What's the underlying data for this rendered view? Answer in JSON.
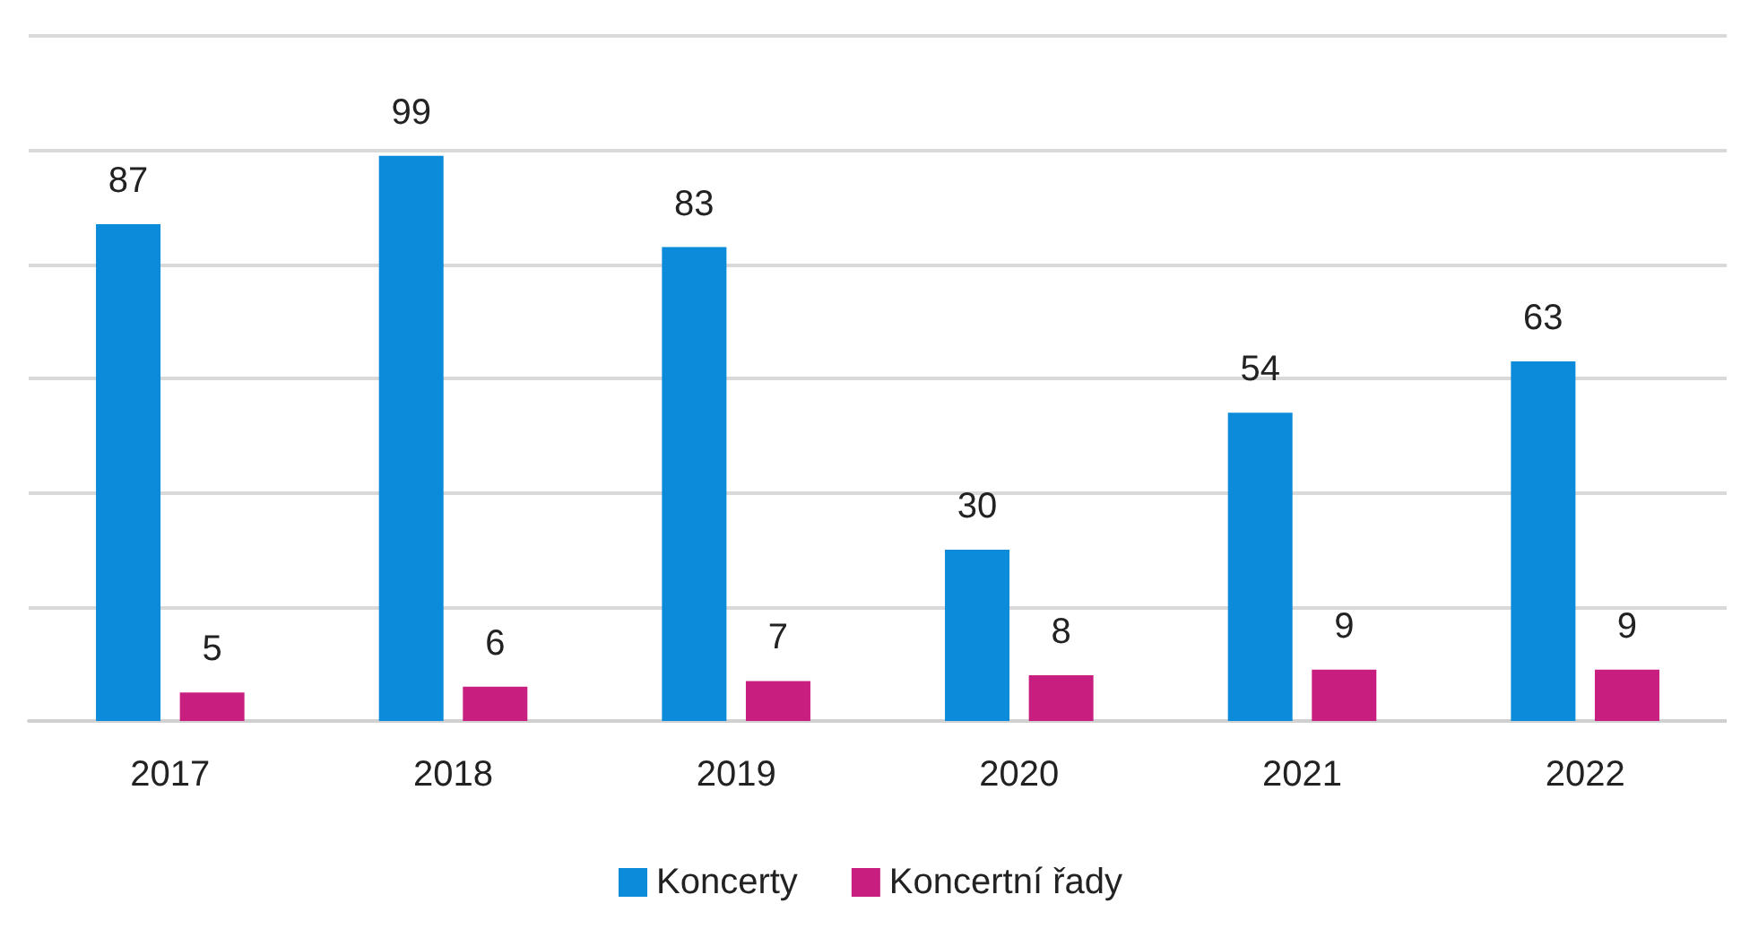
{
  "chart_data": {
    "type": "bar",
    "categories": [
      "2017",
      "2018",
      "2019",
      "2020",
      "2021",
      "2022"
    ],
    "series": [
      {
        "name": "Koncerty",
        "color": "#0b8bd9",
        "values": [
          87,
          99,
          83,
          30,
          54,
          63
        ]
      },
      {
        "name": "Koncertní řady",
        "color": "#c81e80",
        "values": [
          5,
          6,
          7,
          8,
          9,
          9
        ]
      }
    ],
    "ylim": [
      0,
      120
    ],
    "yticks": [
      {
        "value": 0,
        "label": null
      },
      {
        "value": 20,
        "label": null
      },
      {
        "value": 40,
        "label": null
      },
      {
        "value": 60,
        "label": null
      },
      {
        "value": 80,
        "label": null
      },
      {
        "value": 100,
        "label": null
      },
      {
        "value": 120,
        "label": null
      }
    ],
    "grid": "y",
    "legend": "bottom",
    "tick_labels": "x",
    "data_labels": true
  }
}
